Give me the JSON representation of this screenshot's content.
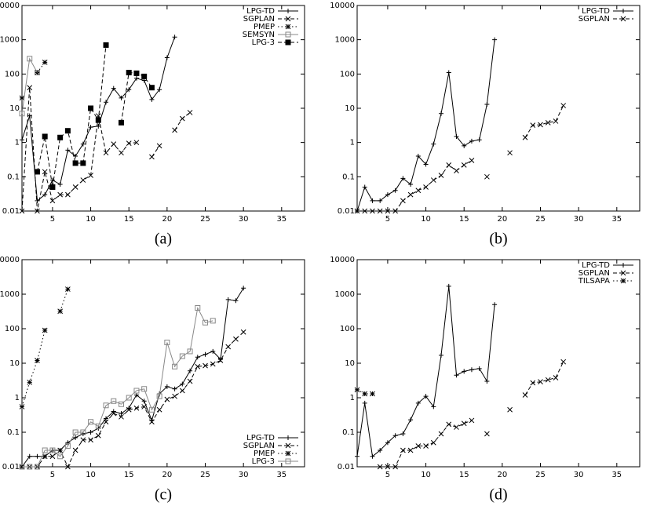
{
  "chart_data": [
    {
      "type": "line",
      "caption": "(a)",
      "ylog": true,
      "legend": "upper right",
      "xlim": [
        1,
        38
      ],
      "ylim": [
        0.01,
        10000
      ],
      "xticks": [
        5,
        10,
        15,
        20,
        25,
        30,
        35
      ],
      "yticks": [
        0.01,
        0.1,
        1,
        10,
        100,
        1000,
        10000
      ],
      "x": [
        1,
        2,
        3,
        4,
        5,
        6,
        7,
        8,
        9,
        10,
        11,
        12,
        13,
        14,
        15,
        16,
        17,
        18,
        19,
        20,
        21,
        22,
        23,
        24,
        25,
        26,
        27,
        28,
        29,
        30
      ],
      "series": [
        {
          "name": "LPG-TD",
          "color": "#000000",
          "dash": "solid",
          "marker": "plus",
          "values": [
            1.2,
            6,
            0.02,
            0.03,
            0.08,
            0.06,
            0.6,
            0.4,
            0.9,
            2.8,
            3,
            15,
            38,
            20,
            35,
            75,
            65,
            18,
            35,
            300,
            1200,
            null,
            null,
            null,
            null,
            null,
            null,
            null,
            null,
            null
          ]
        },
        {
          "name": "SGPLAN",
          "color": "#000000",
          "dash": "dashed",
          "marker": "cross",
          "values": [
            0.01,
            40,
            0.01,
            0.14,
            0.02,
            0.03,
            0.03,
            0.05,
            0.08,
            0.11,
            6,
            0.5,
            0.9,
            0.5,
            0.95,
            1,
            null,
            0.38,
            0.8,
            null,
            2.3,
            5,
            7.5,
            null,
            null,
            null,
            null,
            null,
            null,
            null
          ]
        },
        {
          "name": "PMEP",
          "color": "#000000",
          "dash": "dotted",
          "marker": "star",
          "values": [
            20,
            null,
            110,
            220,
            null,
            null,
            null,
            null,
            null,
            null,
            null,
            null,
            null,
            null,
            null,
            null,
            null,
            null,
            null,
            null,
            null,
            null,
            null,
            null,
            null,
            null,
            null,
            null,
            null,
            null
          ]
        },
        {
          "name": "SEMSYN",
          "color": "#888888",
          "dash": "solid",
          "marker": "square-open",
          "values": [
            7,
            280,
            110,
            null,
            null,
            null,
            null,
            null,
            null,
            null,
            null,
            null,
            null,
            null,
            null,
            null,
            null,
            null,
            null,
            null,
            null,
            null,
            null,
            null,
            null,
            null,
            null,
            null,
            null,
            null
          ]
        },
        {
          "name": "LPG-3",
          "color": "#000000",
          "dash": "dashed",
          "marker": "square-filled",
          "values": [
            null,
            null,
            0.14,
            1.5,
            0.05,
            1.4,
            2.2,
            0.25,
            0.25,
            10,
            4.5,
            700,
            null,
            3.8,
            110,
            105,
            85,
            40,
            null,
            null,
            null,
            null,
            null,
            null,
            null,
            null,
            null,
            null,
            null,
            null
          ]
        }
      ]
    },
    {
      "type": "line",
      "caption": "(b)",
      "ylog": true,
      "legend": "upper right",
      "xlim": [
        1,
        38
      ],
      "ylim": [
        0.01,
        10000
      ],
      "xticks": [
        5,
        10,
        15,
        20,
        25,
        30,
        35
      ],
      "yticks": [
        0.01,
        0.1,
        1,
        10,
        100,
        1000,
        10000
      ],
      "x": [
        1,
        2,
        3,
        4,
        5,
        6,
        7,
        8,
        9,
        10,
        11,
        12,
        13,
        14,
        15,
        16,
        17,
        18,
        19,
        20,
        21,
        22,
        23,
        24,
        25,
        26,
        27,
        28,
        29,
        30
      ],
      "series": [
        {
          "name": "LPG-TD",
          "color": "#000000",
          "dash": "solid",
          "marker": "plus",
          "values": [
            0.01,
            0.05,
            0.02,
            0.02,
            0.03,
            0.04,
            0.09,
            0.06,
            0.4,
            0.23,
            0.9,
            7,
            110,
            1.5,
            0.8,
            1.1,
            1.2,
            13,
            1000,
            null,
            null,
            null,
            null,
            null,
            null,
            null,
            null,
            null,
            null,
            null
          ]
        },
        {
          "name": "SGPLAN",
          "color": "#000000",
          "dash": "dashed",
          "marker": "cross",
          "values": [
            0.01,
            0.01,
            0.01,
            0.01,
            0.01,
            0.01,
            0.02,
            0.03,
            0.04,
            0.05,
            0.08,
            0.11,
            0.22,
            0.15,
            0.22,
            0.3,
            null,
            0.1,
            null,
            null,
            0.5,
            null,
            1.4,
            3.2,
            3.3,
            3.8,
            4.2,
            12,
            null,
            null
          ]
        }
      ]
    },
    {
      "type": "line",
      "caption": "(c)",
      "ylog": true,
      "legend": "lower right",
      "xlim": [
        1,
        38
      ],
      "ylim": [
        0.01,
        10000
      ],
      "xticks": [
        5,
        10,
        15,
        20,
        25,
        30,
        35
      ],
      "yticks": [
        0.01,
        0.1,
        1,
        10,
        100,
        1000,
        10000
      ],
      "x": [
        1,
        2,
        3,
        4,
        5,
        6,
        7,
        8,
        9,
        10,
        11,
        12,
        13,
        14,
        15,
        16,
        17,
        18,
        19,
        20,
        21,
        22,
        23,
        24,
        25,
        26,
        27,
        28,
        29,
        30
      ],
      "series": [
        {
          "name": "LPG-TD",
          "color": "#000000",
          "dash": "solid",
          "marker": "plus",
          "values": [
            0.01,
            0.02,
            0.02,
            0.02,
            0.03,
            0.03,
            0.05,
            0.07,
            0.09,
            0.1,
            0.13,
            0.25,
            0.4,
            0.35,
            0.5,
            1.2,
            0.8,
            0.22,
            1.3,
            2.1,
            1.8,
            2.5,
            6,
            15,
            18,
            22,
            13,
            700,
            650,
            1500
          ]
        },
        {
          "name": "SGPLAN",
          "color": "#000000",
          "dash": "dashed",
          "marker": "cross",
          "values": [
            0.01,
            0.01,
            0.01,
            0.02,
            0.02,
            0.03,
            0.01,
            0.03,
            0.06,
            0.06,
            0.08,
            0.2,
            0.35,
            0.28,
            0.45,
            0.5,
            0.55,
            0.2,
            0.45,
            0.9,
            1.1,
            1.6,
            3,
            8,
            8.5,
            9.5,
            12,
            30,
            50,
            80
          ]
        },
        {
          "name": "PMEP",
          "color": "#000000",
          "dash": "dotted",
          "marker": "star",
          "values": [
            0.55,
            2.8,
            12,
            90,
            null,
            320,
            1400,
            null,
            null,
            null,
            null,
            null,
            null,
            null,
            null,
            null,
            null,
            null,
            null,
            null,
            null,
            null,
            null,
            null,
            null,
            null,
            null,
            null,
            null,
            null
          ]
        },
        {
          "name": "LPG-3",
          "color": "#888888",
          "dash": "solid",
          "marker": "square-open",
          "values": [
            0.01,
            0.01,
            0.01,
            0.03,
            0.03,
            0.02,
            0.04,
            0.1,
            0.1,
            0.2,
            0.15,
            0.6,
            0.8,
            0.65,
            1,
            1.6,
            1.8,
            0.45,
            1.1,
            40,
            8,
            16,
            22,
            400,
            150,
            170,
            null,
            null,
            null,
            null
          ]
        }
      ]
    },
    {
      "type": "line",
      "caption": "(d)",
      "ylog": true,
      "legend": "upper right",
      "xlim": [
        1,
        38
      ],
      "ylim": [
        0.01,
        10000
      ],
      "xticks": [
        5,
        10,
        15,
        20,
        25,
        30,
        35
      ],
      "yticks": [
        0.01,
        0.1,
        1,
        10,
        100,
        1000,
        10000
      ],
      "x": [
        1,
        2,
        3,
        4,
        5,
        6,
        7,
        8,
        9,
        10,
        11,
        12,
        13,
        14,
        15,
        16,
        17,
        18,
        19,
        20,
        21,
        22,
        23,
        24,
        25,
        26,
        27,
        28,
        29,
        30
      ],
      "series": [
        {
          "name": "LPG-TD",
          "color": "#000000",
          "dash": "solid",
          "marker": "plus",
          "values": [
            0.02,
            0.7,
            0.02,
            0.03,
            0.05,
            0.08,
            0.09,
            0.23,
            0.7,
            1.1,
            0.55,
            17,
            1700,
            4.5,
            5.8,
            6.5,
            7,
            3,
            500,
            null,
            null,
            null,
            null,
            null,
            null,
            null,
            null,
            null,
            null,
            null
          ]
        },
        {
          "name": "SGPLAN",
          "color": "#000000",
          "dash": "dashed",
          "marker": "cross",
          "values": [
            null,
            null,
            null,
            0.01,
            0.01,
            0.01,
            0.03,
            0.03,
            0.04,
            0.04,
            0.05,
            0.09,
            0.17,
            0.14,
            0.18,
            0.22,
            null,
            0.09,
            null,
            null,
            0.45,
            null,
            1.2,
            2.7,
            2.9,
            3.3,
            3.8,
            11,
            null,
            null
          ]
        },
        {
          "name": "TILSAPA",
          "color": "#000000",
          "dash": "dotted",
          "marker": "star",
          "values": [
            1.7,
            1.3,
            1.3,
            null,
            null,
            null,
            null,
            null,
            null,
            null,
            null,
            null,
            null,
            null,
            null,
            null,
            null,
            null,
            null,
            null,
            null,
            null,
            null,
            null,
            null,
            null,
            null,
            null,
            null,
            null
          ]
        }
      ]
    }
  ]
}
